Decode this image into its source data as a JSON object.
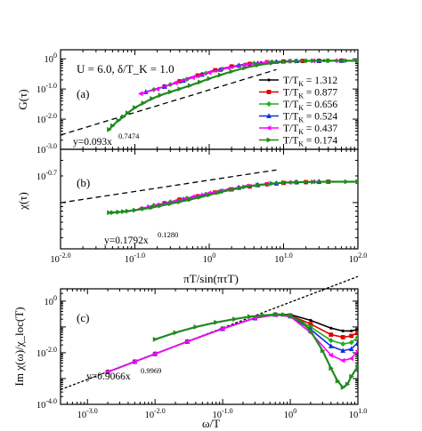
{
  "chart_data": [
    {
      "type": "scatter",
      "panel": "(a)",
      "title": "U = 6.0, δ/T_K = 1.0",
      "xlabel": "",
      "ylabel": "G(τ)",
      "xscale": "log",
      "yscale": "log",
      "xlim": [
        0.01,
        100
      ],
      "ylim": [
        0.001,
        2
      ],
      "ytick_labels": [
        "10^{-3.0}",
        "10^{-2.0}",
        "10^{-1.0}",
        "10^{0}"
      ],
      "legend": "right",
      "series": [
        {
          "name": "T/T_K = 1.312",
          "color": "#000000",
          "marker": "dot",
          "x": [
            0.35,
            0.5,
            0.8,
            1.2,
            2,
            3,
            5,
            8,
            12,
            20,
            35,
            60,
            100
          ],
          "y": [
            0.16,
            0.22,
            0.32,
            0.42,
            0.55,
            0.66,
            0.75,
            0.81,
            0.84,
            0.86,
            0.87,
            0.87,
            0.87
          ]
        },
        {
          "name": "T/T_K = 0.877",
          "color": "#e00000",
          "marker": "square",
          "x": [
            0.25,
            0.4,
            0.7,
            1.2,
            2,
            3.5,
            6,
            10,
            18,
            30,
            60,
            100
          ],
          "y": [
            0.12,
            0.18,
            0.28,
            0.42,
            0.56,
            0.68,
            0.77,
            0.82,
            0.85,
            0.86,
            0.87,
            0.87
          ]
        },
        {
          "name": "T/T_K = 0.656",
          "color": "#1bb01b",
          "marker": "diamond",
          "x": [
            0.18,
            0.3,
            0.5,
            0.9,
            1.5,
            2.5,
            4,
            7,
            12,
            20,
            40,
            100
          ],
          "y": [
            0.095,
            0.14,
            0.21,
            0.33,
            0.46,
            0.6,
            0.71,
            0.79,
            0.84,
            0.86,
            0.87,
            0.87
          ]
        },
        {
          "name": "T/T_K = 0.524",
          "color": "#1030e0",
          "marker": "triangle-up",
          "x": [
            0.14,
            0.25,
            0.45,
            0.8,
            1.4,
            2.5,
            4.5,
            8,
            15,
            30,
            60,
            100
          ],
          "y": [
            0.08,
            0.12,
            0.19,
            0.3,
            0.44,
            0.6,
            0.72,
            0.8,
            0.85,
            0.86,
            0.87,
            0.87
          ]
        },
        {
          "name": "T/T_K = 0.437",
          "color": "#ff00ff",
          "marker": "triangle-left",
          "x": [
            0.12,
            0.2,
            0.35,
            0.6,
            1,
            1.8,
            3,
            6,
            12,
            25,
            50,
            100
          ],
          "y": [
            0.07,
            0.1,
            0.16,
            0.24,
            0.35,
            0.5,
            0.64,
            0.77,
            0.84,
            0.86,
            0.87,
            0.87
          ]
        },
        {
          "name": "T/T_K = 0.174",
          "color": "#1f8a1f",
          "marker": "triangle-right",
          "x": [
            0.045,
            0.05,
            0.06,
            0.07,
            0.08,
            0.1,
            0.13,
            0.17,
            0.22,
            0.3,
            0.4,
            0.55,
            0.75,
            1,
            1.4,
            2,
            3,
            4.5,
            7,
            10,
            15,
            25,
            40,
            70,
            100
          ],
          "y": [
            0.0045,
            0.006,
            0.009,
            0.012,
            0.016,
            0.024,
            0.034,
            0.048,
            0.062,
            0.08,
            0.1,
            0.13,
            0.17,
            0.22,
            0.29,
            0.38,
            0.5,
            0.62,
            0.73,
            0.8,
            0.84,
            0.86,
            0.87,
            0.87,
            0.87
          ]
        }
      ],
      "fit": {
        "label": "y=0.093x",
        "exponent_label": "0.7474",
        "a": 0.093,
        "b": 0.7474,
        "xrange": [
          0.01,
          8
        ]
      }
    },
    {
      "type": "scatter",
      "panel": "(b)",
      "xlabel": "πT/sin(πτT)",
      "ylabel": "χ(τ)",
      "xscale": "log",
      "yscale": "log",
      "xlim": [
        0.01,
        100
      ],
      "ylim": [
        0.03,
        0.4
      ],
      "xtick_labels": [
        "10^{-2.0}",
        "10^{-1.0}",
        "10^{0}",
        "10^{1.0}",
        "10^{2.0}"
      ],
      "ytick_labels": [
        "10^{-0.7}"
      ],
      "series": [
        {
          "name": "T/T_K = 1.312",
          "color": "#000000",
          "marker": "dot",
          "x": [
            0.3,
            0.5,
            0.8,
            1.3,
            2,
            3.5,
            6,
            10,
            20,
            40,
            100
          ],
          "y": [
            0.101,
            0.111,
            0.121,
            0.132,
            0.142,
            0.153,
            0.161,
            0.167,
            0.17,
            0.172,
            0.172
          ]
        },
        {
          "name": "T/T_K = 0.877",
          "color": "#e00000",
          "marker": "square",
          "x": [
            0.25,
            0.4,
            0.7,
            1.2,
            2,
            3.5,
            6,
            10,
            20,
            40,
            100
          ],
          "y": [
            0.098,
            0.108,
            0.118,
            0.13,
            0.141,
            0.152,
            0.161,
            0.167,
            0.17,
            0.172,
            0.172
          ]
        },
        {
          "name": "T/T_K = 0.656",
          "color": "#1bb01b",
          "marker": "diamond",
          "x": [
            0.18,
            0.3,
            0.5,
            0.9,
            1.5,
            2.5,
            4.5,
            8,
            15,
            30,
            100
          ],
          "y": [
            0.093,
            0.102,
            0.112,
            0.124,
            0.136,
            0.148,
            0.158,
            0.165,
            0.17,
            0.172,
            0.172
          ]
        },
        {
          "name": "T/T_K = 0.524",
          "color": "#1030e0",
          "marker": "triangle-up",
          "x": [
            0.15,
            0.25,
            0.45,
            0.8,
            1.4,
            2.5,
            4.5,
            8,
            15,
            30,
            100
          ],
          "y": [
            0.089,
            0.098,
            0.109,
            0.121,
            0.134,
            0.147,
            0.158,
            0.165,
            0.17,
            0.172,
            0.172
          ]
        },
        {
          "name": "T/T_K = 0.437",
          "color": "#ff00ff",
          "marker": "triangle-left",
          "x": [
            0.12,
            0.2,
            0.35,
            0.6,
            1,
            1.8,
            3.2,
            6,
            12,
            25,
            100
          ],
          "y": [
            0.086,
            0.094,
            0.104,
            0.116,
            0.128,
            0.141,
            0.154,
            0.163,
            0.169,
            0.172,
            0.172
          ]
        },
        {
          "name": "T/T_K = 0.174",
          "color": "#1f8a1f",
          "marker": "triangle-right",
          "x": [
            0.045,
            0.05,
            0.06,
            0.07,
            0.08,
            0.1,
            0.13,
            0.17,
            0.22,
            0.3,
            0.4,
            0.55,
            0.75,
            1,
            1.4,
            2,
            3,
            4.5,
            7,
            10,
            15,
            25,
            40,
            70,
            100
          ],
          "y": [
            0.077,
            0.077,
            0.078,
            0.079,
            0.08,
            0.082,
            0.085,
            0.088,
            0.092,
            0.097,
            0.102,
            0.108,
            0.115,
            0.122,
            0.131,
            0.14,
            0.15,
            0.158,
            0.164,
            0.168,
            0.17,
            0.171,
            0.172,
            0.172,
            0.172
          ]
        }
      ],
      "fit": {
        "label": "y=0.1792x",
        "exponent_label": "0.1280",
        "a": 0.1792,
        "b": 0.128,
        "xrange": [
          0.01,
          8
        ]
      }
    },
    {
      "type": "scatter",
      "panel": "(c)",
      "xlabel": "ω/T",
      "ylabel": "Im χ(ω)/χ_loc(T)",
      "xscale": "log",
      "yscale": "log",
      "xlim": [
        0.0004,
        10
      ],
      "ylim": [
        0.0001,
        3
      ],
      "xtick_labels": [
        "10^{-3.0}",
        "10^{-2.0}",
        "10^{-1.0}",
        "10^{0}",
        "10^{1.0}"
      ],
      "ytick_labels": [
        "10^{-4.0}",
        "10^{-2.0}",
        "10^{0}"
      ],
      "series": [
        {
          "name": "T/T_K = 1.312",
          "color": "#000000",
          "marker": "dot",
          "x": [
            0.002,
            0.005,
            0.01,
            0.03,
            0.1,
            0.3,
            0.6,
            1,
            2,
            4,
            6,
            8,
            10
          ],
          "y": [
            0.0018,
            0.0045,
            0.009,
            0.027,
            0.085,
            0.22,
            0.31,
            0.3,
            0.18,
            0.09,
            0.07,
            0.07,
            0.08
          ]
        },
        {
          "name": "T/T_K = 0.877",
          "color": "#e00000",
          "marker": "square",
          "x": [
            0.002,
            0.005,
            0.01,
            0.03,
            0.1,
            0.3,
            0.6,
            1,
            2,
            4,
            6,
            8,
            10
          ],
          "y": [
            0.0018,
            0.0045,
            0.009,
            0.027,
            0.085,
            0.22,
            0.3,
            0.28,
            0.13,
            0.05,
            0.04,
            0.045,
            0.06
          ]
        },
        {
          "name": "T/T_K = 0.656",
          "color": "#1bb01b",
          "marker": "diamond",
          "x": [
            0.002,
            0.005,
            0.01,
            0.03,
            0.1,
            0.3,
            0.6,
            1,
            2,
            4,
            6,
            8,
            10
          ],
          "y": [
            0.0018,
            0.0045,
            0.009,
            0.027,
            0.085,
            0.22,
            0.3,
            0.27,
            0.1,
            0.03,
            0.022,
            0.025,
            0.04
          ]
        },
        {
          "name": "T/T_K = 0.524",
          "color": "#1030e0",
          "marker": "triangle-up",
          "x": [
            0.002,
            0.005,
            0.01,
            0.03,
            0.1,
            0.3,
            0.6,
            1,
            2,
            4,
            6,
            8,
            10
          ],
          "y": [
            0.0018,
            0.0045,
            0.009,
            0.027,
            0.085,
            0.22,
            0.3,
            0.26,
            0.08,
            0.018,
            0.012,
            0.014,
            0.025
          ]
        },
        {
          "name": "T/T_K = 0.437",
          "color": "#ff00ff",
          "marker": "triangle-left",
          "x": [
            0.002,
            0.005,
            0.01,
            0.03,
            0.1,
            0.3,
            0.6,
            1,
            2,
            4,
            6,
            8,
            10
          ],
          "y": [
            0.0018,
            0.0045,
            0.009,
            0.027,
            0.085,
            0.22,
            0.29,
            0.25,
            0.06,
            0.008,
            0.005,
            0.006,
            0.012
          ]
        },
        {
          "name": "T/T_K = 0.174",
          "color": "#1f8a1f",
          "marker": "triangle-right",
          "x": [
            0.01,
            0.02,
            0.04,
            0.08,
            0.15,
            0.25,
            0.4,
            0.6,
            0.8,
            1,
            1.5,
            2,
            3,
            4,
            5,
            6,
            7,
            8,
            10
          ],
          "y": [
            0.033,
            0.06,
            0.1,
            0.15,
            0.2,
            0.25,
            0.28,
            0.3,
            0.3,
            0.27,
            0.15,
            0.07,
            0.012,
            0.0025,
            0.0008,
            0.00045,
            0.0006,
            0.0012,
            0.003
          ]
        }
      ],
      "fit": {
        "label": "y=0.9066x",
        "exponent_label": "0.9969",
        "a": 0.9066,
        "b": 0.9969,
        "xrange": [
          0.0004,
          10
        ]
      }
    }
  ],
  "legend_prefix": "T/T",
  "legend_sub": "K",
  "legend_values": [
    "= 1.312",
    "= 0.877",
    "= 0.656",
    "= 0.524",
    "= 0.437",
    "= 0.174"
  ]
}
